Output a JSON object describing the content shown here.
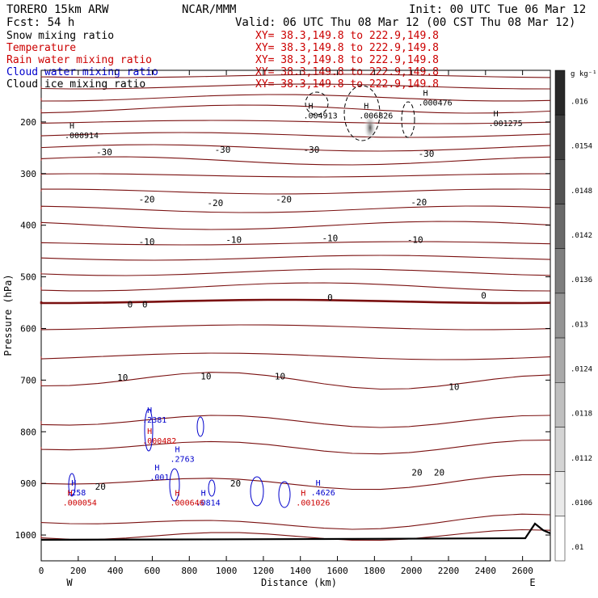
{
  "header": {
    "model": "TORERO  15km ARW",
    "center": "NCAR/MMM",
    "init": "Init: 00 UTC Tue 06 Mar 12",
    "fcst": "Fcst:   54 h",
    "valid": "Valid: 06 UTC Thu 08 Mar 12 (00 CST Thu 08 Mar 12)"
  },
  "fields": [
    {
      "label": "Snow mixing ratio",
      "xy": "XY=  38.3,149.8 to 222.9,149.8",
      "color": "#000000"
    },
    {
      "label": "Temperature",
      "xy": "XY=  38.3,149.8 to 222.9,149.8",
      "color": "#cc0000"
    },
    {
      "label": "Rain water mixing ratio",
      "xy": "XY=  38.3,149.8 to 222.9,149.8",
      "color": "#cc0000"
    },
    {
      "label": "Cloud water mixing ratio",
      "xy": "XY=  38.3,149.8 to 222.9,149.8",
      "color": "#0000cc"
    },
    {
      "label": "Cloud ice mixing ratio",
      "xy": "XY=  38.3,149.8 to 222.9,149.8",
      "color": "#000000"
    }
  ],
  "colorbar": {
    "unit": "g kg⁻¹",
    "ticks": [
      ".016",
      ".0154",
      ".0148",
      ".0142",
      ".0136",
      ".013",
      ".0124",
      ".0118",
      ".0112",
      ".0106",
      ".01"
    ]
  },
  "chart_data": {
    "type": "contour",
    "xlabel": "Distance (km)",
    "ylabel": "Pressure (hPa)",
    "xlim": [
      0,
      2750
    ],
    "ylim": [
      1050,
      100
    ],
    "x_ticks": [
      0,
      200,
      400,
      600,
      800,
      1000,
      1200,
      1400,
      1600,
      1800,
      2000,
      2200,
      2400,
      2600
    ],
    "y_ticks": [
      200,
      300,
      400,
      500,
      600,
      700,
      800,
      900,
      1000
    ],
    "left_end": "W",
    "right_end": "E",
    "temperature_labels": [
      {
        "text": "-30",
        "x": 340,
        "p": 258
      },
      {
        "text": "-30",
        "x": 980,
        "p": 253
      },
      {
        "text": "-30",
        "x": 1460,
        "p": 253
      },
      {
        "text": "-30",
        "x": 2080,
        "p": 261
      },
      {
        "text": "-20",
        "x": 570,
        "p": 350
      },
      {
        "text": "-20",
        "x": 940,
        "p": 357
      },
      {
        "text": "-20",
        "x": 1310,
        "p": 350
      },
      {
        "text": "-20",
        "x": 2040,
        "p": 355
      },
      {
        "text": "-10",
        "x": 570,
        "p": 432
      },
      {
        "text": "-10",
        "x": 1040,
        "p": 428
      },
      {
        "text": "-10",
        "x": 1560,
        "p": 425
      },
      {
        "text": "-10",
        "x": 2020,
        "p": 428
      },
      {
        "text": "0",
        "x": 480,
        "p": 553
      },
      {
        "text": "0",
        "x": 560,
        "p": 553
      },
      {
        "text": "0",
        "x": 1560,
        "p": 540
      },
      {
        "text": "0",
        "x": 2390,
        "p": 536
      },
      {
        "text": "10",
        "x": 440,
        "p": 695
      },
      {
        "text": "10",
        "x": 890,
        "p": 692
      },
      {
        "text": "10",
        "x": 1290,
        "p": 692
      },
      {
        "text": "10",
        "x": 2230,
        "p": 713
      },
      {
        "text": "20",
        "x": 320,
        "p": 906
      },
      {
        "text": "20",
        "x": 1050,
        "p": 900
      },
      {
        "text": "20",
        "x": 2030,
        "p": 879
      },
      {
        "text": "20",
        "x": 2150,
        "p": 879
      }
    ],
    "maxima": [
      {
        "field": "cloud_ice",
        "value": ".000914",
        "x": 170,
        "p": 228
      },
      {
        "field": "cloud_ice",
        "value": ".004913",
        "x": 1460,
        "p": 190
      },
      {
        "field": "cloud_ice",
        "value": ".006826",
        "x": 1760,
        "p": 190
      },
      {
        "field": "cloud_ice",
        "value": ".001275",
        "x": 2460,
        "p": 205
      },
      {
        "field": "cloud_ice",
        "value": ".000476",
        "x": 2080,
        "p": 165
      },
      {
        "field": "cloud_water",
        "value": ".2381",
        "x": 590,
        "p": 779
      },
      {
        "field": "cloud_water",
        "value": ".2763",
        "x": 740,
        "p": 855
      },
      {
        "field": "cloud_water",
        "value": ".001",
        "x": 630,
        "p": 890
      },
      {
        "field": "cloud_water",
        "value": ".258",
        "x": 180,
        "p": 920
      },
      {
        "field": "cloud_water",
        "value": ".0814",
        "x": 880,
        "p": 940
      },
      {
        "field": "cloud_water",
        "value": ".4626",
        "x": 1500,
        "p": 920
      },
      {
        "field": "rain_water",
        "value": ".000482",
        "x": 590,
        "p": 820
      },
      {
        "field": "rain_water",
        "value": ".000054",
        "x": 160,
        "p": 940
      },
      {
        "field": "rain_water",
        "value": ".000646",
        "x": 740,
        "p": 940
      },
      {
        "field": "rain_water",
        "value": ".001026",
        "x": 1420,
        "p": 940
      }
    ]
  }
}
